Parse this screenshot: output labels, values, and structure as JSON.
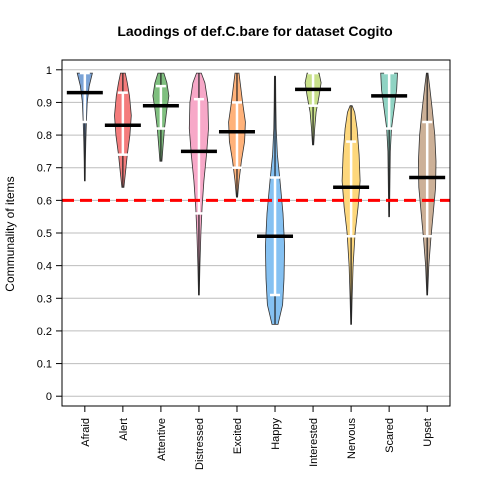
{
  "chart_data": {
    "type": "violin",
    "title": "Laodings of def.C.bare for dataset Cogito",
    "xlabel": "",
    "ylabel": "Communality of items",
    "ylim": [
      -0.03,
      1.03
    ],
    "yticks": [
      0,
      0.1,
      0.2,
      0.3,
      0.4,
      0.5,
      0.6,
      0.7,
      0.8,
      0.9,
      1
    ],
    "ytick_labels": [
      "0",
      "0.1",
      "0.2",
      "0.3",
      "0.4",
      "0.5",
      "0.6",
      "0.7",
      "0.8",
      "0.9",
      "1"
    ],
    "grid": true,
    "reference_line": {
      "y": 0.6,
      "color": "#ff0000",
      "style": "dashed"
    },
    "categories": [
      "Afraid",
      "Alert",
      "Attentive",
      "Distressed",
      "Excited",
      "Happy",
      "Interested",
      "Nervous",
      "Scared",
      "Upset"
    ],
    "colors": [
      "#7ba3d6",
      "#f47c7c",
      "#7fbf7f",
      "#f7a8c8",
      "#ffb27a",
      "#85c1f2",
      "#c8e08a",
      "#fdd77c",
      "#8fd3c3",
      "#ccb097"
    ],
    "series": [
      {
        "category": "Afraid",
        "min": 0.66,
        "max": 0.99,
        "median": 0.93,
        "q1": 0.84,
        "q3": 0.99,
        "profile": [
          [
            0.66,
            0.02
          ],
          [
            0.72,
            0.03
          ],
          [
            0.78,
            0.05
          ],
          [
            0.84,
            0.08
          ],
          [
            0.9,
            0.12
          ],
          [
            0.95,
            0.22
          ],
          [
            0.99,
            0.38
          ]
        ]
      },
      {
        "category": "Alert",
        "min": 0.64,
        "max": 0.99,
        "median": 0.83,
        "q1": 0.74,
        "q3": 0.93,
        "profile": [
          [
            0.64,
            0.05
          ],
          [
            0.68,
            0.12
          ],
          [
            0.74,
            0.22
          ],
          [
            0.8,
            0.35
          ],
          [
            0.86,
            0.42
          ],
          [
            0.92,
            0.33
          ],
          [
            0.96,
            0.22
          ],
          [
            0.99,
            0.12
          ]
        ]
      },
      {
        "category": "Attentive",
        "min": 0.72,
        "max": 0.99,
        "median": 0.89,
        "q1": 0.82,
        "q3": 0.95,
        "profile": [
          [
            0.72,
            0.05
          ],
          [
            0.76,
            0.1
          ],
          [
            0.82,
            0.18
          ],
          [
            0.88,
            0.3
          ],
          [
            0.92,
            0.4
          ],
          [
            0.96,
            0.3
          ],
          [
            0.99,
            0.15
          ]
        ]
      },
      {
        "category": "Distressed",
        "min": 0.31,
        "max": 0.99,
        "median": 0.75,
        "q1": 0.56,
        "q3": 0.91,
        "profile": [
          [
            0.31,
            0.02
          ],
          [
            0.4,
            0.05
          ],
          [
            0.5,
            0.1
          ],
          [
            0.58,
            0.16
          ],
          [
            0.66,
            0.25
          ],
          [
            0.74,
            0.38
          ],
          [
            0.82,
            0.48
          ],
          [
            0.9,
            0.45
          ],
          [
            0.96,
            0.3
          ],
          [
            0.99,
            0.12
          ]
        ]
      },
      {
        "category": "Excited",
        "min": 0.61,
        "max": 0.99,
        "median": 0.81,
        "q1": 0.7,
        "q3": 0.9,
        "profile": [
          [
            0.61,
            0.03
          ],
          [
            0.66,
            0.1
          ],
          [
            0.72,
            0.22
          ],
          [
            0.78,
            0.38
          ],
          [
            0.84,
            0.42
          ],
          [
            0.9,
            0.28
          ],
          [
            0.95,
            0.18
          ],
          [
            0.99,
            0.1
          ]
        ]
      },
      {
        "category": "Happy",
        "min": 0.22,
        "max": 0.98,
        "median": 0.49,
        "q1": 0.31,
        "q3": 0.67,
        "profile": [
          [
            0.22,
            0.15
          ],
          [
            0.28,
            0.38
          ],
          [
            0.36,
            0.45
          ],
          [
            0.46,
            0.48
          ],
          [
            0.56,
            0.4
          ],
          [
            0.66,
            0.25
          ],
          [
            0.74,
            0.12
          ],
          [
            0.82,
            0.06
          ],
          [
            0.9,
            0.04
          ],
          [
            0.98,
            0.03
          ]
        ]
      },
      {
        "category": "Interested",
        "min": 0.77,
        "max": 0.99,
        "median": 0.94,
        "q1": 0.89,
        "q3": 0.99,
        "profile": [
          [
            0.77,
            0.03
          ],
          [
            0.82,
            0.08
          ],
          [
            0.87,
            0.15
          ],
          [
            0.92,
            0.3
          ],
          [
            0.96,
            0.4
          ],
          [
            0.99,
            0.3
          ]
        ]
      },
      {
        "category": "Nervous",
        "min": 0.22,
        "max": 0.89,
        "median": 0.64,
        "q1": 0.49,
        "q3": 0.78,
        "profile": [
          [
            0.22,
            0.02
          ],
          [
            0.3,
            0.05
          ],
          [
            0.4,
            0.1
          ],
          [
            0.5,
            0.2
          ],
          [
            0.58,
            0.35
          ],
          [
            0.66,
            0.45
          ],
          [
            0.74,
            0.4
          ],
          [
            0.82,
            0.3
          ],
          [
            0.87,
            0.18
          ],
          [
            0.89,
            0.05
          ]
        ]
      },
      {
        "category": "Scared",
        "min": 0.55,
        "max": 0.99,
        "median": 0.92,
        "q1": 0.82,
        "q3": 0.99,
        "profile": [
          [
            0.55,
            0.02
          ],
          [
            0.65,
            0.04
          ],
          [
            0.75,
            0.06
          ],
          [
            0.82,
            0.12
          ],
          [
            0.88,
            0.25
          ],
          [
            0.94,
            0.38
          ],
          [
            0.99,
            0.42
          ]
        ]
      },
      {
        "category": "Upset",
        "min": 0.31,
        "max": 0.99,
        "median": 0.67,
        "q1": 0.49,
        "q3": 0.84,
        "profile": [
          [
            0.31,
            0.02
          ],
          [
            0.4,
            0.08
          ],
          [
            0.48,
            0.18
          ],
          [
            0.56,
            0.3
          ],
          [
            0.64,
            0.42
          ],
          [
            0.72,
            0.44
          ],
          [
            0.8,
            0.38
          ],
          [
            0.88,
            0.25
          ],
          [
            0.95,
            0.12
          ],
          [
            0.99,
            0.04
          ]
        ]
      }
    ]
  }
}
